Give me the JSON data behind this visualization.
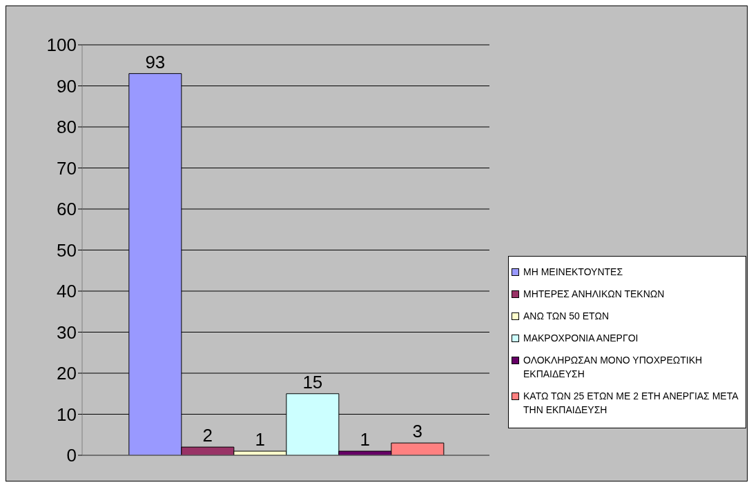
{
  "chart_data": {
    "type": "bar",
    "categories": [
      null
    ],
    "series": [
      {
        "name": "ΜΗ ΜΕΙΝΕΚΤΟΥΝΤΕΣ",
        "color": "#9999ff",
        "values": [
          93
        ]
      },
      {
        "name": "ΜΗΤΕΡΕΣ ΑΝΗΛΙΚΩΝ ΤΕΚΝΩΝ",
        "color": "#993366",
        "values": [
          2
        ]
      },
      {
        "name": "ΑΝΩ ΤΩΝ 50 ΕΤΩΝ",
        "color": "#ffffcc",
        "values": [
          1
        ]
      },
      {
        "name": "ΜΑΚΡΟΧΡΟΝΙΑ ΑΝΕΡΓΟΙ",
        "color": "#ccffff",
        "values": [
          15
        ]
      },
      {
        "name": "ΟΛΟΚΛΗΡΩΣΑΝ ΜΟΝΟ ΥΠΟΧΡΕΩΤΙΚΗ ΕΚΠΑΙΔΕΥΣΗ",
        "color": "#660066",
        "values": [
          1
        ]
      },
      {
        "name": "ΚΑΤΩ ΤΩΝ 25 ΕΤΩΝ ΜΕ 2 ΕΤΗ ΑΝΕΡΓΙΑΣ ΜΕΤΑ ΤΗΝ ΕΚΠΑΙΔΕΥΣΗ",
        "color": "#ff8080",
        "values": [
          3
        ]
      }
    ],
    "ylim": [
      0,
      100
    ],
    "yticks": [
      0,
      10,
      20,
      30,
      40,
      50,
      60,
      70,
      80,
      90,
      100
    ],
    "grid": "y",
    "legend": "right",
    "data_labels": true
  }
}
